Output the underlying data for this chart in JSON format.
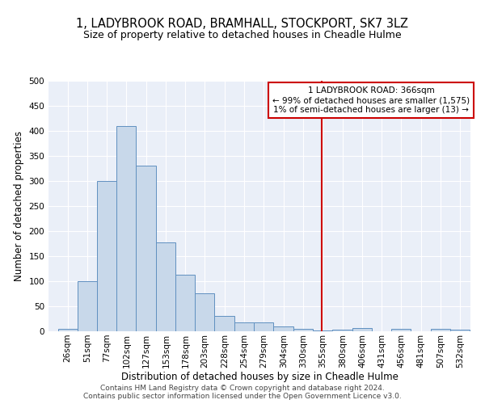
{
  "title": "1, LADYBROOK ROAD, BRAMHALL, STOCKPORT, SK7 3LZ",
  "subtitle": "Size of property relative to detached houses in Cheadle Hulme",
  "xlabel": "Distribution of detached houses by size in Cheadle Hulme",
  "ylabel": "Number of detached properties",
  "bar_color": "#c8d8ea",
  "bar_edge_color": "#6090c0",
  "bin_labels": [
    "26sqm",
    "51sqm",
    "77sqm",
    "102sqm",
    "127sqm",
    "153sqm",
    "178sqm",
    "203sqm",
    "228sqm",
    "254sqm",
    "279sqm",
    "304sqm",
    "330sqm",
    "355sqm",
    "380sqm",
    "406sqm",
    "431sqm",
    "456sqm",
    "481sqm",
    "507sqm",
    "532sqm"
  ],
  "bin_left_edges": [
    26,
    51,
    77,
    102,
    127,
    153,
    178,
    203,
    228,
    254,
    279,
    304,
    330,
    355,
    380,
    406,
    431,
    456,
    481,
    507,
    532
  ],
  "bin_widths": [
    25,
    26,
    25,
    25,
    26,
    25,
    25,
    25,
    26,
    25,
    25,
    26,
    25,
    25,
    26,
    25,
    25,
    25,
    26,
    25,
    25
  ],
  "bar_heights": [
    5,
    100,
    300,
    410,
    330,
    178,
    113,
    76,
    30,
    18,
    18,
    10,
    5,
    2,
    4,
    6,
    0,
    5,
    0,
    5,
    3
  ],
  "red_line_x": 366,
  "annotation_line1": "1 LADYBROOK ROAD: 366sqm",
  "annotation_line2": "← 99% of detached houses are smaller (1,575)",
  "annotation_line3": "1% of semi-detached houses are larger (13) →",
  "annotation_box_color": "#ffffff",
  "annotation_box_edge_color": "#cc0000",
  "red_line_color": "#cc0000",
  "background_color": "#eaeff8",
  "footer_line1": "Contains HM Land Registry data © Crown copyright and database right 2024.",
  "footer_line2": "Contains public sector information licensed under the Open Government Licence v3.0.",
  "ylim": [
    0,
    500
  ],
  "xlim_left": 14,
  "xlim_right": 558,
  "title_fontsize": 10.5,
  "subtitle_fontsize": 9,
  "xlabel_fontsize": 8.5,
  "ylabel_fontsize": 8.5,
  "tick_fontsize": 7.5,
  "footer_fontsize": 6.5
}
